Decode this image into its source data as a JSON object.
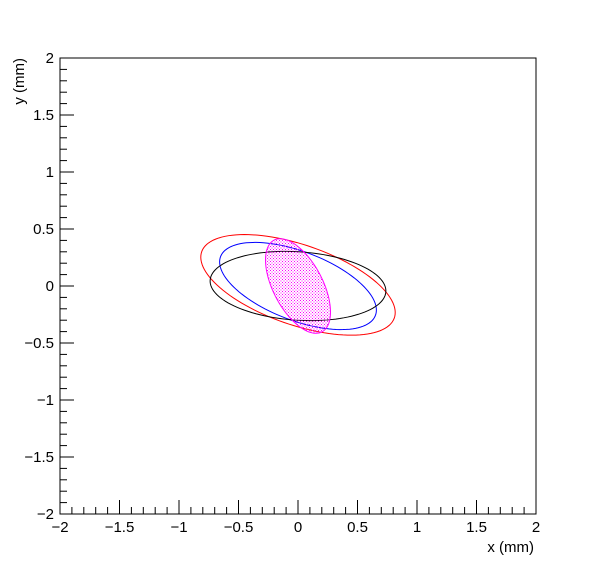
{
  "chart_data": {
    "type": "ellipse",
    "xlabel": "x (mm)",
    "ylabel": "y (mm)",
    "xlim": [
      -2,
      2
    ],
    "ylim": [
      -2,
      2
    ],
    "xticks": [
      {
        "value": -2,
        "label": "−2"
      },
      {
        "value": -1.5,
        "label": "−1.5"
      },
      {
        "value": -1,
        "label": "−1"
      },
      {
        "value": -0.5,
        "label": "−0.5"
      },
      0,
      0.5,
      1,
      1.5,
      2
    ],
    "yticks": [
      {
        "value": -2,
        "label": "−2"
      },
      {
        "value": -1.5,
        "label": "−1.5"
      },
      {
        "value": -1,
        "label": "−1"
      },
      {
        "value": -0.5,
        "label": "−0.5"
      },
      0,
      0.5,
      1,
      1.5,
      2
    ],
    "minor_ticks_per_major": 5,
    "ellipses": [
      {
        "cx": 0,
        "cy": 0.01,
        "rx": 0.86,
        "ry": 0.35,
        "angle": -20,
        "color": "#ff0000",
        "filled": false
      },
      {
        "cx": 0,
        "cy": 0,
        "rx": 0.7,
        "ry": 0.3,
        "angle": -22,
        "color": "#0000ff",
        "filled": false
      },
      {
        "cx": 0,
        "cy": 0,
        "rx": 0.74,
        "ry": 0.3,
        "angle": -4,
        "color": "#000000",
        "filled": false
      },
      {
        "cx": 0,
        "cy": 0,
        "rx": 0.45,
        "ry": 0.21,
        "angle": -64,
        "color": "#ff00ff",
        "filled": true
      }
    ]
  }
}
